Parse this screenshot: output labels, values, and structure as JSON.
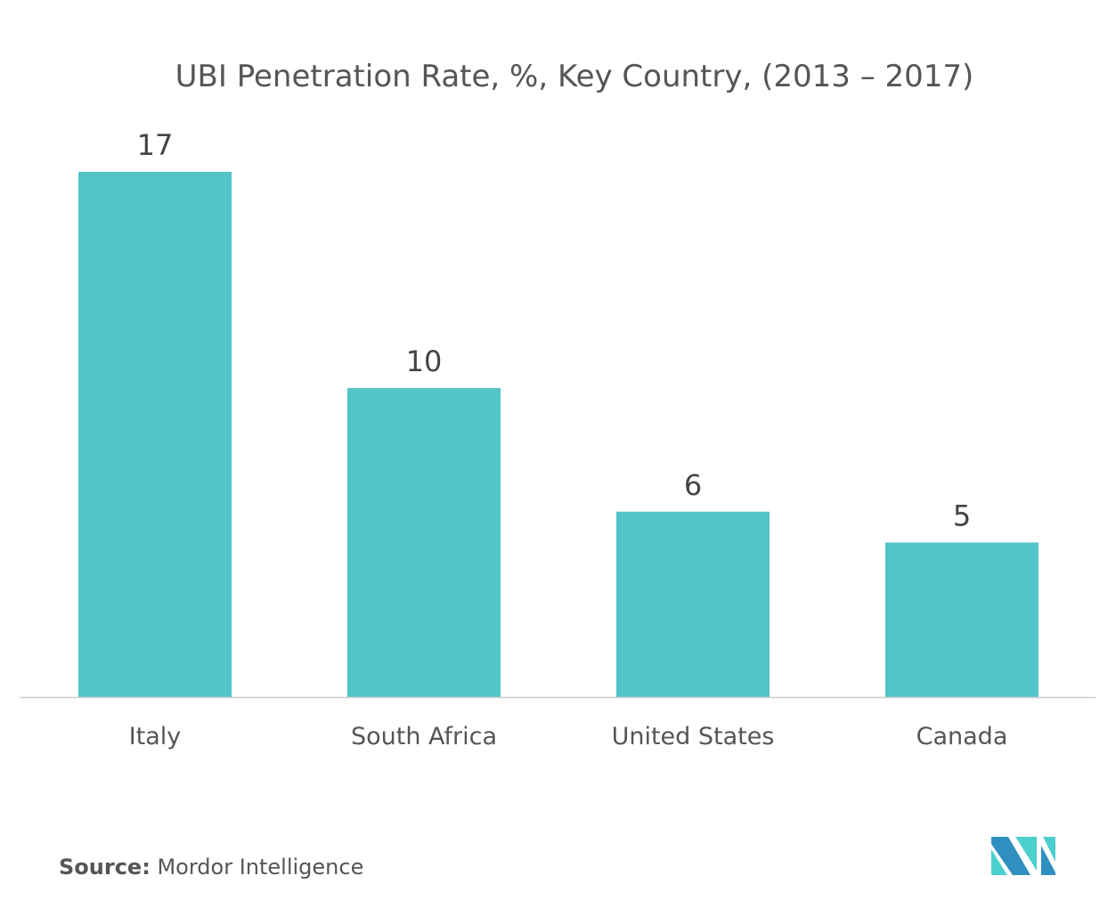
{
  "chart_data": {
    "type": "bar",
    "title": "UBI Penetration Rate, %, Key Country, (2013 – 2017)",
    "categories": [
      "Italy",
      "South Africa",
      "United States",
      "Canada"
    ],
    "values": [
      17,
      10,
      6,
      5
    ],
    "xlabel": "",
    "ylabel": "",
    "ylim": [
      0,
      17
    ],
    "grid": false,
    "bar_color": "#52C4CA",
    "axis_color": "#CCCCCC"
  },
  "source": {
    "label": "Source:",
    "text": "Mordor Intelligence"
  },
  "logo": {
    "text": "Mordor Intelligence",
    "colors": [
      "#2E8FC0",
      "#4DCFCF"
    ]
  }
}
